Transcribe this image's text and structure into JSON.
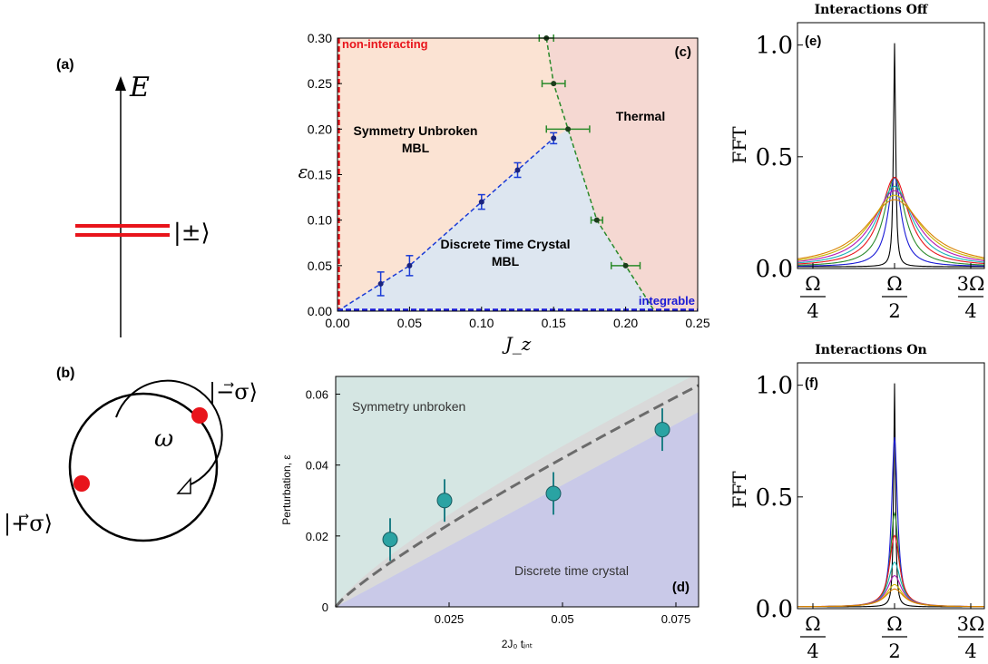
{
  "panel_a": {
    "label": "(a)",
    "axis_label": "E",
    "level_label": "|±⟩"
  },
  "panel_b": {
    "label": "(b)",
    "freq_label": "ω",
    "state_minus": "|−⃗σ⟩",
    "state_plus": "|+⃗σ⟩",
    "dot_color": "#e8141b"
  },
  "chart_data": [
    {
      "type": "area",
      "panel_label": "(c)",
      "xlabel": "J_z",
      "ylabel": "ε",
      "xlim": [
        0.0,
        0.25
      ],
      "ylim": [
        0.0,
        0.3
      ],
      "xticks": [
        "0.00",
        "0.05",
        "0.10",
        "0.15",
        "0.20",
        "0.25"
      ],
      "yticks": [
        "0.00",
        "0.05",
        "0.10",
        "0.15",
        "0.20",
        "0.25",
        "0.30"
      ],
      "regions": [
        {
          "name": "Symmetry Unbroken MBL",
          "color": "#fbe3d3"
        },
        {
          "name": "Thermal",
          "color": "#f5d8d2"
        },
        {
          "name": "Discrete Time Crystal MBL",
          "color": "#dde6f0"
        }
      ],
      "annotations": [
        "non-interacting",
        "integrable",
        "Symmetry Unbroken",
        "MBL",
        "Thermal",
        "Discrete Time Crystal",
        "MBL"
      ],
      "annotation_colors": {
        "non-interacting": "#e8141b",
        "integrable": "#1a1ad6"
      },
      "dtc_boundary": {
        "color": "#1a3bd6",
        "x": [
          0.03,
          0.05,
          0.1,
          0.125,
          0.15
        ],
        "y": [
          0.03,
          0.05,
          0.12,
          0.155,
          0.19
        ],
        "yerr": [
          0.013,
          0.011,
          0.008,
          0.008,
          0.006
        ]
      },
      "thermal_boundary": {
        "color": "#2a8a2a",
        "x": [
          0.145,
          0.15,
          0.16,
          0.18,
          0.2
        ],
        "y": [
          0.3,
          0.25,
          0.2,
          0.1,
          0.05
        ],
        "xerr": [
          0.005,
          0.008,
          0.015,
          0.004,
          0.01
        ]
      }
    },
    {
      "type": "scatter",
      "panel_label": "(d)",
      "xlabel": "2J₀ tᵢₙₜ",
      "ylabel": "Perturbation, ε",
      "xlim": [
        0.0,
        0.08
      ],
      "ylim": [
        0.0,
        0.065
      ],
      "xticks": [
        "0.025",
        "0.05",
        "0.075"
      ],
      "yticks": [
        "0",
        "0.02",
        "0.04",
        "0.06"
      ],
      "region_labels": [
        "Symmetry unbroken",
        "Discrete time crystal"
      ],
      "region_colors": {
        "upper": "#d5e6e3",
        "lower": "#c9c9e8",
        "band": "#d9d9d9"
      },
      "point_color": "#2aa3a3",
      "points": {
        "x": [
          0.012,
          0.024,
          0.048,
          0.072
        ],
        "y": [
          0.019,
          0.03,
          0.032,
          0.05
        ],
        "yerr": [
          0.006,
          0.006,
          0.006,
          0.006
        ]
      }
    },
    {
      "type": "line",
      "panel_label": "(e)",
      "title": "Interactions Off",
      "ylabel": "FFT",
      "yticks": [
        "0.0",
        "0.5",
        "1.0"
      ],
      "xticks": [
        "Ω/4",
        "Ω/2",
        "3Ω/4"
      ],
      "ylim": [
        0.0,
        1.1
      ],
      "series_colors": [
        "#000000",
        "#1a1ad6",
        "#2a8a2a",
        "#e8141b",
        "#17b3b3",
        "#b317b3",
        "#c8b400",
        "#d98200"
      ],
      "peak_heights": [
        1.0,
        0.4,
        0.4,
        0.4,
        0.36,
        0.34,
        0.32,
        0.3
      ]
    },
    {
      "type": "line",
      "panel_label": "(f)",
      "title": "Interactions On",
      "ylabel": "FFT",
      "yticks": [
        "0.0",
        "0.5",
        "1.0"
      ],
      "xticks": [
        "Ω/4",
        "Ω/2",
        "3Ω/4"
      ],
      "ylim": [
        0.0,
        1.1
      ],
      "series_colors": [
        "#000000",
        "#1a1ad6",
        "#2a8a2a",
        "#e8141b",
        "#17b3b3",
        "#b317b3",
        "#c8b400",
        "#d98200"
      ],
      "peak_heights": [
        1.0,
        0.76,
        0.42,
        0.32,
        0.2,
        0.14,
        0.1,
        0.08
      ]
    }
  ]
}
